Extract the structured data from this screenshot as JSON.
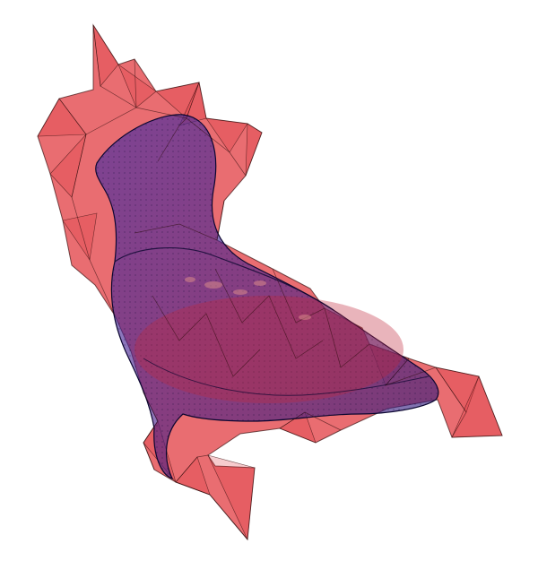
{
  "scene": {
    "background_color": "#ffffff",
    "outer_mesh": {
      "label": "outer-hull-mesh",
      "fill_color": "#e0343a",
      "stroke_color": "#3a1010",
      "fill_opacity": 0.72
    },
    "inner_mesh": {
      "label": "inner-body-mesh",
      "fill_color": "#2a1f9a",
      "stroke_color": "#0b0630",
      "fill_opacity": 0.62
    }
  }
}
